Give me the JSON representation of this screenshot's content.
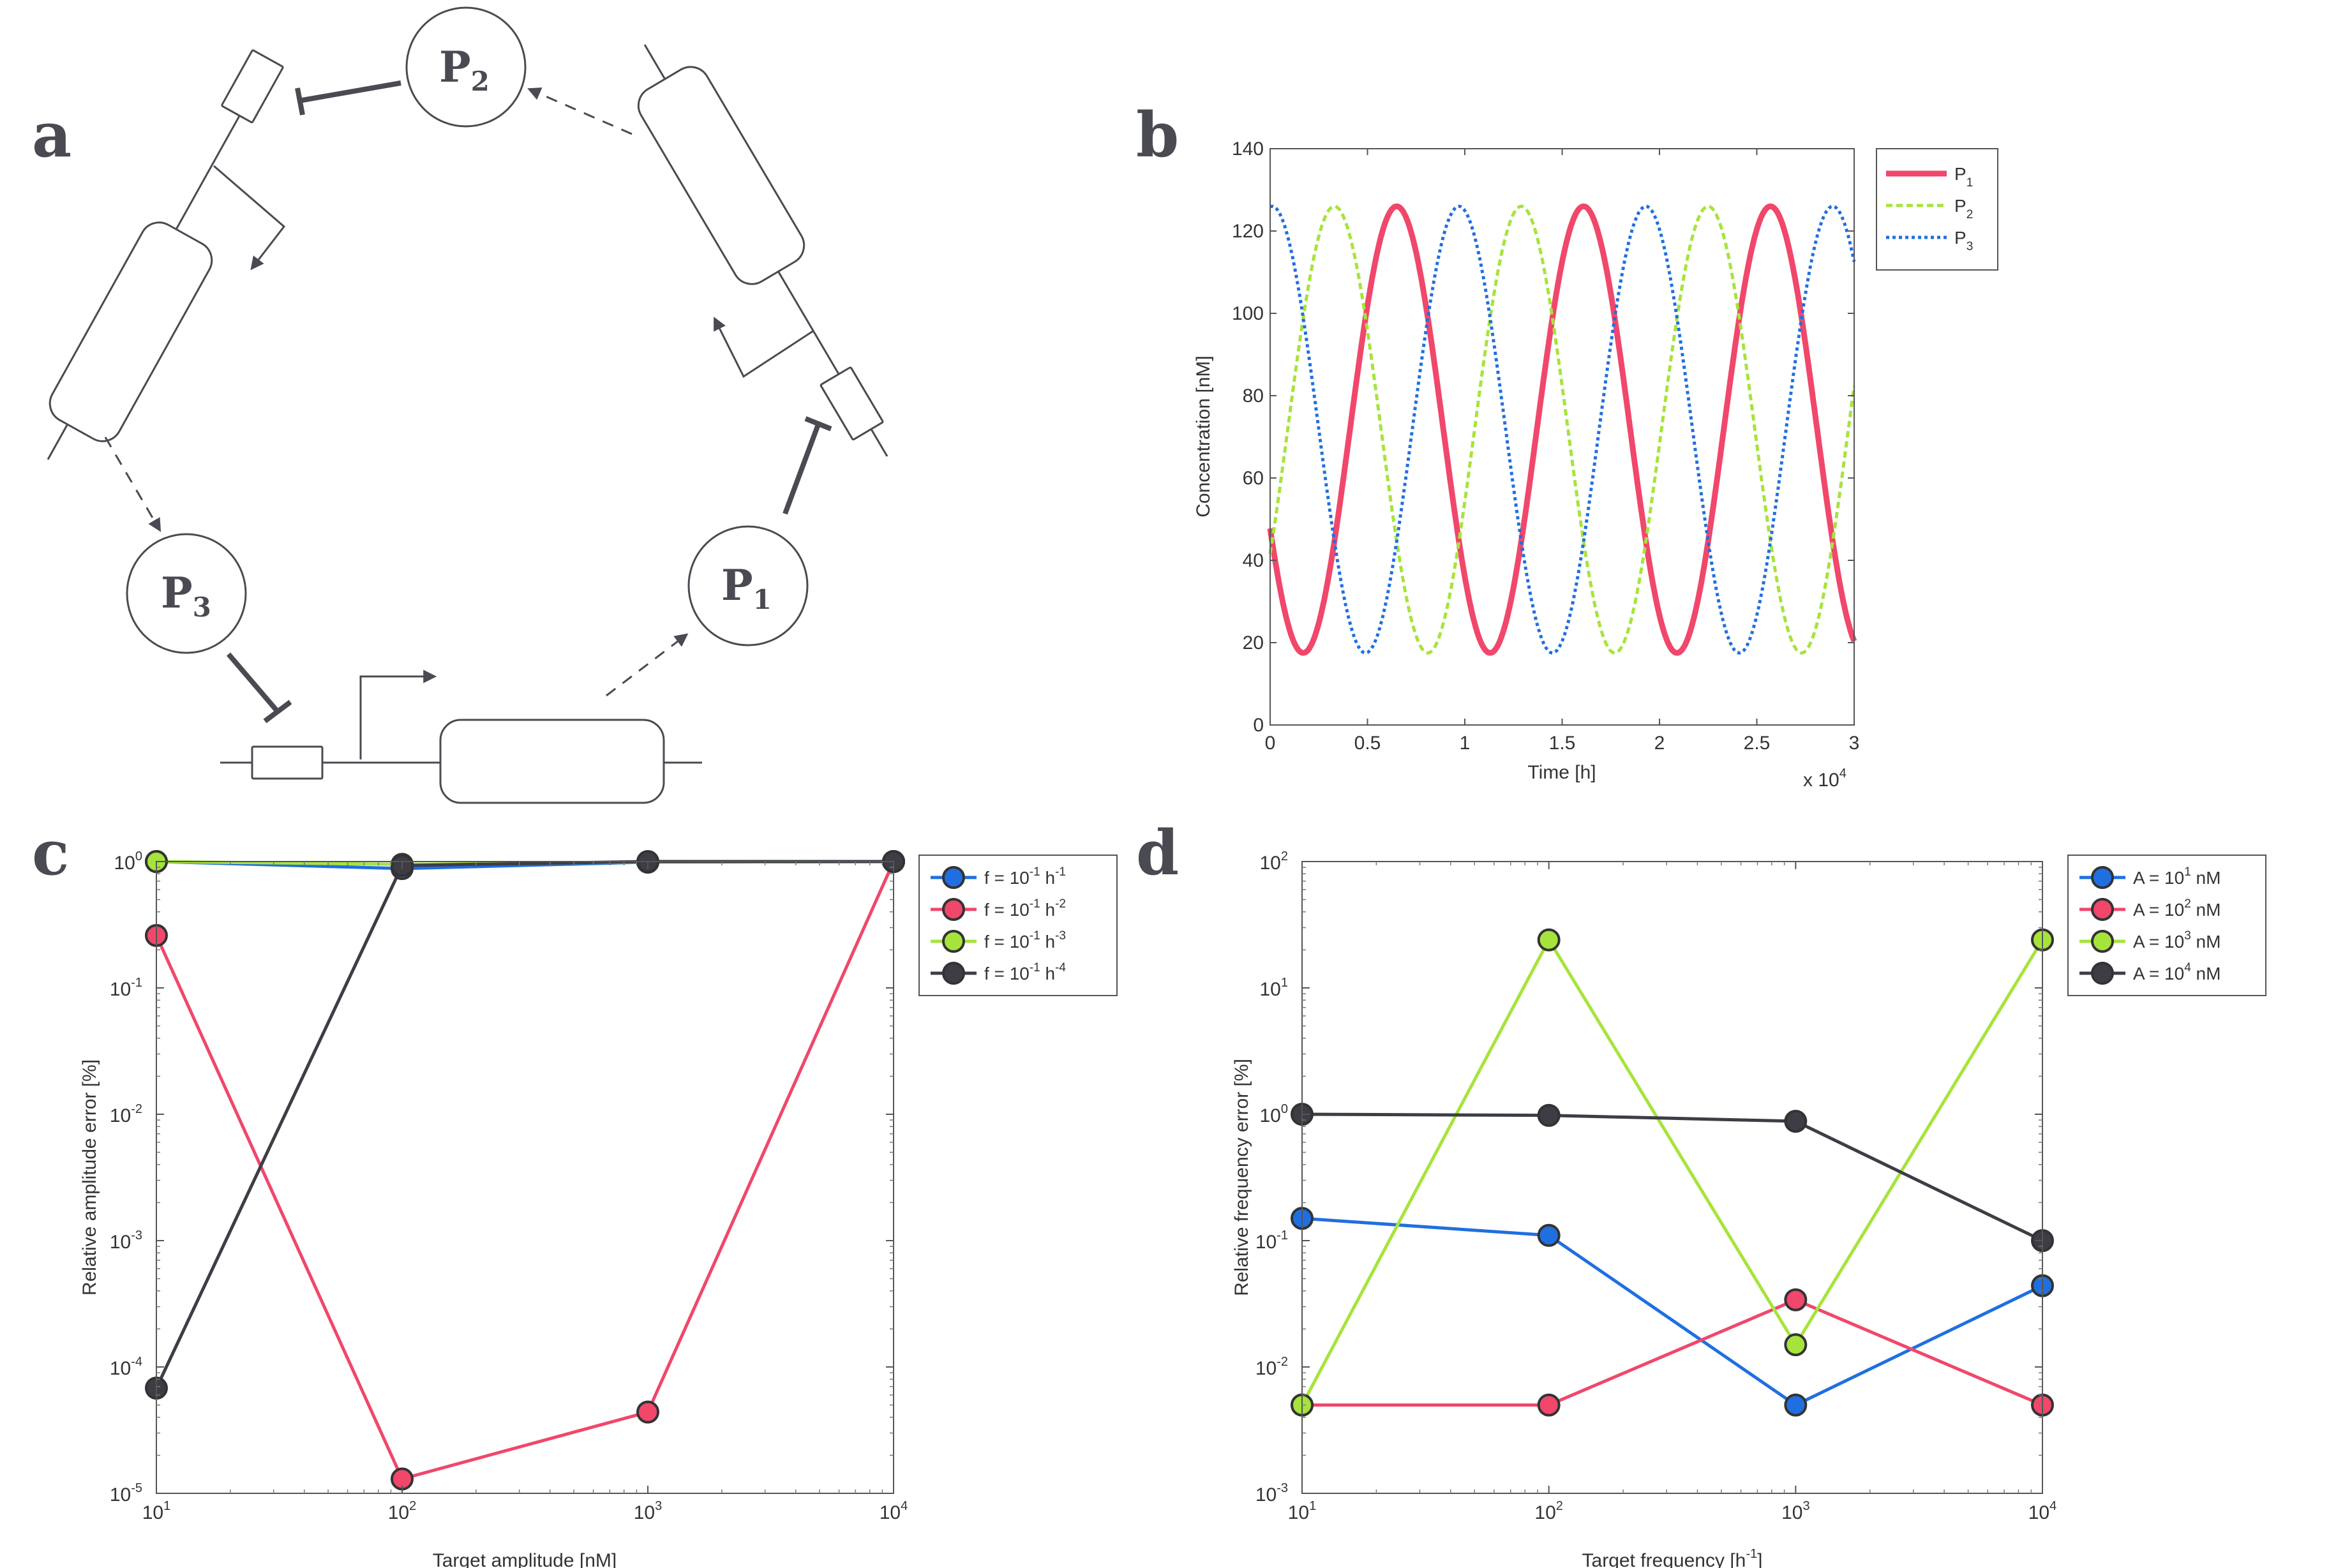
{
  "panel_letters": [
    "a",
    "b",
    "c",
    "d"
  ],
  "diagram": {
    "nodes": [
      {
        "main": "P",
        "sub": "2"
      },
      {
        "main": "P",
        "sub": "3"
      },
      {
        "main": "P",
        "sub": "1"
      }
    ]
  },
  "colors": {
    "red": "#f0476b",
    "green": "#a6e43b",
    "blue": "#1f6fe0",
    "dark": "#3d3d45",
    "diagram": "#4a4a52"
  },
  "chart_data": [
    {
      "panel": "b",
      "type": "line",
      "xlabel": "Time [h]",
      "ylabel": "Concentration [nM]",
      "x_multiplier": "x 10",
      "x_multiplier_exp": "4",
      "xlim": [
        0,
        3
      ],
      "ylim": [
        0,
        140
      ],
      "xticks": [
        "0",
        "0.5",
        "1",
        "1.5",
        "2",
        "2.5",
        "3"
      ],
      "yticks": [
        "0",
        "20",
        "40",
        "60",
        "80",
        "100",
        "120",
        "140"
      ],
      "legend_position": "outside-right",
      "series": [
        {
          "name": "P",
          "sub": "1",
          "color": "#f0476b",
          "style": "solid",
          "peaks_x": [
            0.65,
            1.61,
            2.57
          ],
          "troughs_x": [
            0.17,
            1.13,
            2.09
          ],
          "max": 126,
          "min": 17.5
        },
        {
          "name": "P",
          "sub": "2",
          "color": "#a6e43b",
          "style": "dashed",
          "peaks_x": [
            0.33,
            1.29,
            2.25
          ],
          "troughs_x": [
            0.81,
            1.77,
            2.73
          ],
          "max": 126,
          "min": 17.5
        },
        {
          "name": "P",
          "sub": "3",
          "color": "#1f6fe0",
          "style": "dotted",
          "peaks_x": [
            0.01,
            0.97,
            1.93,
            2.89
          ],
          "troughs_x": [
            0.49,
            1.45,
            2.41
          ],
          "max": 126,
          "min": 17.5
        }
      ]
    },
    {
      "panel": "c",
      "type": "line",
      "xscale": "log",
      "yscale": "log",
      "xlabel": "Target amplitude [nM]",
      "ylabel": "Relative amplitude error [%]",
      "xlim": [
        10,
        10000
      ],
      "ylim": [
        1e-05,
        1
      ],
      "xticks": [
        {
          "base": "10",
          "exp": "1"
        },
        {
          "base": "10",
          "exp": "2"
        },
        {
          "base": "10",
          "exp": "3"
        },
        {
          "base": "10",
          "exp": "4"
        }
      ],
      "yticks": [
        {
          "base": "10",
          "exp": "-5"
        },
        {
          "base": "10",
          "exp": "-4"
        },
        {
          "base": "10",
          "exp": "-3"
        },
        {
          "base": "10",
          "exp": "-2"
        },
        {
          "base": "10",
          "exp": "-1"
        },
        {
          "base": "10",
          "exp": "0"
        }
      ],
      "x": [
        10,
        100,
        1000,
        10000
      ],
      "legend_position": "outside-right",
      "series": [
        {
          "name": "f = 10",
          "exp": "-1",
          "unit": " h",
          "unit_exp": "-1",
          "color": "#1f6fe0",
          "values": [
            1.0,
            0.88,
            0.99,
            1.0
          ]
        },
        {
          "name": "f = 10",
          "exp": "-1",
          "unit": " h",
          "unit_exp": "-2",
          "color": "#f0476b",
          "values": [
            0.26,
            1.3e-05,
            4.4e-05,
            1.0
          ]
        },
        {
          "name": "f = 10",
          "exp": "-1",
          "unit": " h",
          "unit_exp": "-3",
          "color": "#a6e43b",
          "values": [
            1.0,
            0.95,
            0.99,
            1.0
          ]
        },
        {
          "name": "f = 10",
          "exp": "-1",
          "unit": " h",
          "unit_exp": "-4",
          "color": "#3d3d45",
          "values": [
            6.8e-05,
            0.93,
            1.0,
            1.0
          ]
        }
      ]
    },
    {
      "panel": "d",
      "type": "line",
      "xscale": "log",
      "yscale": "log",
      "xlabel": "Target frequency [h",
      "xlabel_exp": "-1",
      "xlabel_end": "]",
      "ylabel": "Relative frequency error [%]",
      "xlim": [
        10,
        10000
      ],
      "ylim": [
        0.001,
        100
      ],
      "xticks": [
        {
          "base": "10",
          "exp": "1"
        },
        {
          "base": "10",
          "exp": "2"
        },
        {
          "base": "10",
          "exp": "3"
        },
        {
          "base": "10",
          "exp": "4"
        }
      ],
      "yticks": [
        {
          "base": "10",
          "exp": "-3"
        },
        {
          "base": "10",
          "exp": "-2"
        },
        {
          "base": "10",
          "exp": "-1"
        },
        {
          "base": "10",
          "exp": "0"
        },
        {
          "base": "10",
          "exp": "1"
        },
        {
          "base": "10",
          "exp": "2"
        }
      ],
      "x": [
        10,
        100,
        1000,
        10000
      ],
      "legend_position": "outside-right",
      "series": [
        {
          "name": "A = 10",
          "exp": "1",
          "unit": " nM",
          "color": "#1f6fe0",
          "values": [
            0.15,
            0.11,
            0.005,
            0.044
          ]
        },
        {
          "name": "A = 10",
          "exp": "2",
          "unit": " nM",
          "color": "#f0476b",
          "values": [
            0.005,
            0.005,
            0.034,
            0.005
          ]
        },
        {
          "name": "A = 10",
          "exp": "3",
          "unit": " nM",
          "color": "#a6e43b",
          "values": [
            0.005,
            24,
            0.015,
            24
          ]
        },
        {
          "name": "A = 10",
          "exp": "4",
          "unit": " nM",
          "color": "#3d3d45",
          "values": [
            1.0,
            0.98,
            0.88,
            0.1
          ]
        }
      ]
    }
  ]
}
